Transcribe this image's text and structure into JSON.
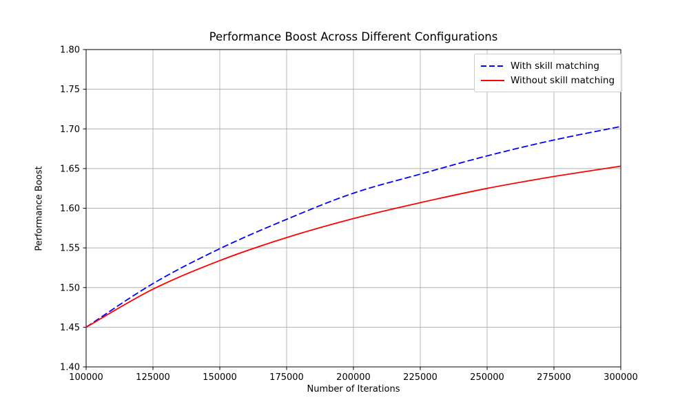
{
  "chart_data": {
    "type": "line",
    "title": "Performance Boost Across Different Configurations",
    "xlabel": "Number of Iterations",
    "ylabel": "Performance Boost",
    "xlim": [
      100000,
      300000
    ],
    "ylim": [
      1.4,
      1.8
    ],
    "xtick_labels": [
      "100000",
      "125000",
      "150000",
      "175000",
      "200000",
      "225000",
      "250000",
      "275000",
      "300000"
    ],
    "ytick_labels": [
      "1.40",
      "1.45",
      "1.50",
      "1.55",
      "1.60",
      "1.65",
      "1.70",
      "1.75",
      "1.80"
    ],
    "grid": true,
    "grid_color": "#b0b0b0",
    "frame_color": "#000000",
    "background_color": "#ffffff",
    "legend_position": "upper right",
    "legend_border_color": "#cccccc",
    "x": [
      100000,
      125000,
      150000,
      175000,
      200000,
      225000,
      250000,
      275000,
      300000
    ],
    "series": [
      {
        "name": "With skill matching",
        "color": "#0000ff",
        "style": "dashed",
        "values": [
          1.45,
          1.505,
          1.549,
          1.586,
          1.619,
          1.643,
          1.666,
          1.686,
          1.703
        ]
      },
      {
        "name": "Without skill matching",
        "color": "#ff0000",
        "style": "solid",
        "values": [
          1.45,
          1.498,
          1.534,
          1.563,
          1.587,
          1.607,
          1.625,
          1.64,
          1.653
        ]
      }
    ]
  }
}
